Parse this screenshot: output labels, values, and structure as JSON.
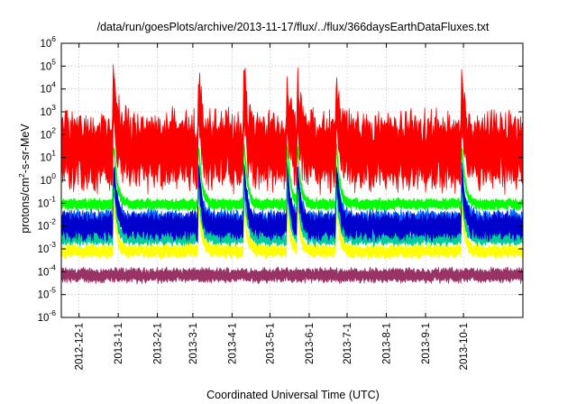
{
  "chart_data": {
    "type": "area",
    "title": "/data/run/goesPlots/archive/2013-11-17/flux/../flux/366daysEarthDataFluxes.txt",
    "xlabel": "Coordinated Universal Time (UTC)",
    "ylabel_parts": [
      "protons/cm",
      "2",
      "-s-sr-MeV"
    ],
    "y_scale": "log",
    "ylim": [
      1e-06,
      1000000.0
    ],
    "y_ticks": [
      {
        "base": "10",
        "exp": "6",
        "value": 1000000.0
      },
      {
        "base": "10",
        "exp": "5",
        "value": 100000.0
      },
      {
        "base": "10",
        "exp": "4",
        "value": 10000.0
      },
      {
        "base": "10",
        "exp": "3",
        "value": 1000.0
      },
      {
        "base": "10",
        "exp": "2",
        "value": 100.0
      },
      {
        "base": "10",
        "exp": "1",
        "value": 10.0
      },
      {
        "base": "10",
        "exp": "0",
        "value": 1.0
      },
      {
        "base": "10",
        "exp": "-1",
        "value": 0.1
      },
      {
        "base": "10",
        "exp": "-2",
        "value": 0.01
      },
      {
        "base": "10",
        "exp": "-3",
        "value": 0.001
      },
      {
        "base": "10",
        "exp": "-4",
        "value": 0.0001
      },
      {
        "base": "10",
        "exp": "-5",
        "value": 1e-05
      },
      {
        "base": "10",
        "exp": "-6",
        "value": 1e-06
      }
    ],
    "xlim": [
      "2012-11-17",
      "2013-11-17"
    ],
    "x_ticks": [
      "2012-12-1",
      "2013-1-1",
      "2013-2-1",
      "2013-3-1",
      "2013-4-1",
      "2013-5-1",
      "2013-6-1",
      "2013-7-1",
      "2013-8-1",
      "2013-9-1",
      "2013-10-1"
    ],
    "grid": true,
    "legend": "none",
    "events": [
      "2012-12-29",
      "2013-03-06",
      "2013-04-11",
      "2013-05-15",
      "2013-05-23",
      "2013-06-23",
      "2013-09-30"
    ],
    "series": [
      {
        "color": "#993366",
        "baseline": 7e-05,
        "band": [
          5e-05,
          0.0002
        ]
      },
      {
        "color": "#ffff00",
        "baseline": 0.0008,
        "band": [
          0.0004,
          0.0015
        ]
      },
      {
        "color": "#00cc99",
        "baseline": 0.003,
        "band": [
          0.0015,
          0.006
        ]
      },
      {
        "color": "#0066ff",
        "baseline": 0.015,
        "band": [
          0.005,
          0.05
        ]
      },
      {
        "color": "#0000cc",
        "baseline": 0.01,
        "band": [
          0.004,
          0.05
        ]
      },
      {
        "color": "#00ff00",
        "baseline": 0.09,
        "band": [
          0.05,
          0.15
        ]
      },
      {
        "color": "#ff0000",
        "baseline": 20,
        "band": [
          0.3,
          400
        ]
      }
    ]
  }
}
